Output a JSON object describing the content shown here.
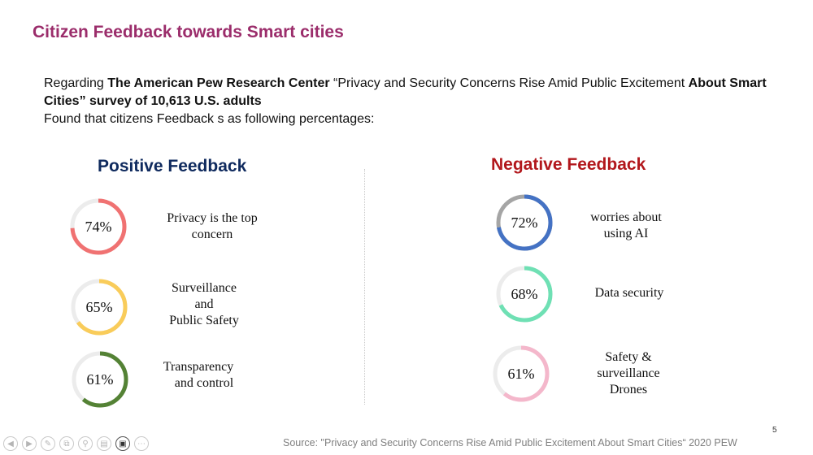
{
  "title": "Citizen Feedback towards Smart cities",
  "intro": {
    "t1": "Regarding ",
    "b1": "The American Pew Research Center",
    "t2": "  “Privacy and Security Concerns Rise Amid Public Excitement ",
    "b2": "About Smart Cities” survey of 10,613 U.S. adults",
    "line3": "Found that citizens Feedback s as following percentages:"
  },
  "positive": {
    "heading": "Positive Feedback",
    "items": [
      {
        "percent": "74%",
        "value": 0.74,
        "label_lines": [
          "Privacy is the top",
          "concern"
        ],
        "color": "#f07272"
      },
      {
        "percent": "65%",
        "value": 0.65,
        "label_lines": [
          "Surveillance",
          "and",
          "Public Safety"
        ],
        "color": "#f9cc5a"
      },
      {
        "percent": "61%",
        "value": 0.61,
        "label_lines": [
          "Transparency",
          "and control"
        ],
        "color": "#548235"
      }
    ]
  },
  "negative": {
    "heading": "Negative Feedback",
    "items": [
      {
        "percent": "72%",
        "value": 0.72,
        "label_lines": [
          "worries about",
          "using AI"
        ],
        "color": "#4472c4",
        "remainder_color": "#a5a5a5"
      },
      {
        "percent": "68%",
        "value": 0.68,
        "label_lines": [
          "Data security"
        ],
        "color": "#6fe0b4"
      },
      {
        "percent": "61%",
        "value": 0.61,
        "label_lines": [
          "Safety &",
          "surveillance",
          "Drones"
        ],
        "color": "#f4b7cb"
      }
    ]
  },
  "colors": {
    "title": "#9b2d6b",
    "positive_heading": "#0f2a5e",
    "negative_heading": "#b2171c",
    "ring_track": "#ececec"
  },
  "footer": {
    "source": "Source: \"Privacy and Security Concerns Rise Amid Public Excitement About Smart Cities“ 2020 PEW",
    "page_number": "5",
    "controls": [
      "previous-icon",
      "next-icon",
      "pen-icon",
      "copy-icon",
      "zoom-icon",
      "subtitles-icon",
      "camera-icon",
      "more-icon"
    ]
  }
}
